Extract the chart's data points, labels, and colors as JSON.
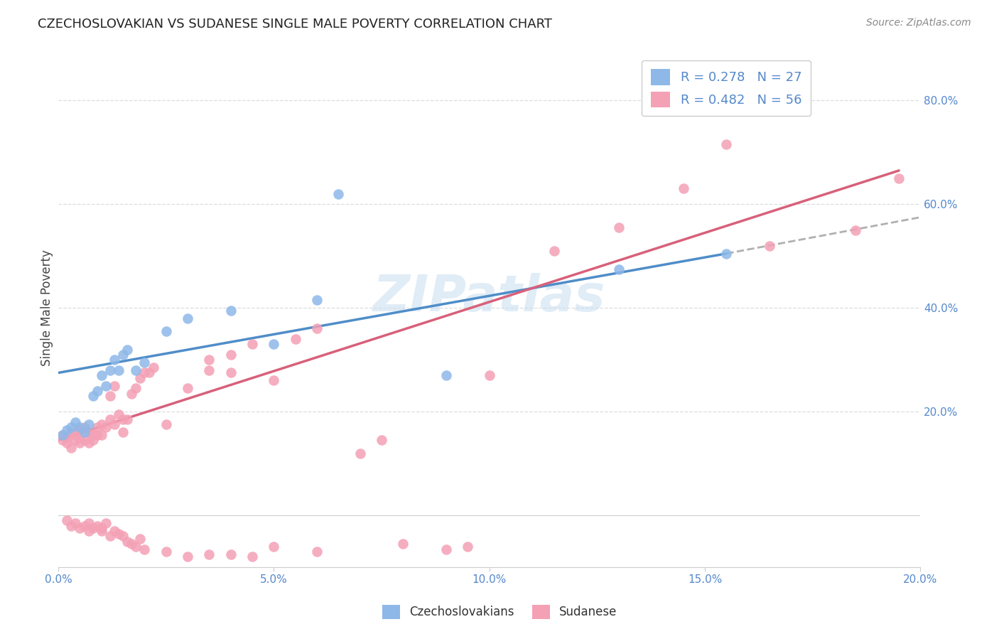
{
  "title": "CZECHOSLOVAKIAN VS SUDANESE SINGLE MALE POVERTY CORRELATION CHART",
  "source": "Source: ZipAtlas.com",
  "ylabel_label": "Single Male Poverty",
  "xlim": [
    0.0,
    0.2
  ],
  "ylim": [
    -0.1,
    0.9
  ],
  "xticks": [
    0.0,
    0.05,
    0.1,
    0.15,
    0.2
  ],
  "ytick_right_vals": [
    0.2,
    0.4,
    0.6,
    0.8
  ],
  "ytick_right_labels": [
    "20.0%",
    "40.0%",
    "60.0%",
    "80.0%"
  ],
  "legend_r1": "R = 0.278",
  "legend_n1": "N = 27",
  "legend_r2": "R = 0.482",
  "legend_n2": "N = 56",
  "color_czech": "#8db8e8",
  "color_sudan": "#f4a0b5",
  "color_czech_line": "#4f8dc8",
  "color_sudan_line": "#d8607a",
  "color_czech_ext": "#b0b0b0",
  "watermark": "ZIPatlas",
  "czech_x": [
    0.001,
    0.002,
    0.003,
    0.004,
    0.005,
    0.006,
    0.007,
    0.008,
    0.009,
    0.01,
    0.011,
    0.012,
    0.013,
    0.014,
    0.015,
    0.016,
    0.018,
    0.02,
    0.025,
    0.03,
    0.04,
    0.05,
    0.06,
    0.065,
    0.09,
    0.13,
    0.155
  ],
  "czech_y": [
    0.155,
    0.165,
    0.17,
    0.18,
    0.17,
    0.16,
    0.175,
    0.23,
    0.24,
    0.27,
    0.25,
    0.28,
    0.3,
    0.28,
    0.31,
    0.32,
    0.28,
    0.295,
    0.355,
    0.38,
    0.395,
    0.33,
    0.415,
    0.62,
    0.27,
    0.475,
    0.505
  ],
  "sudan_x": [
    0.001,
    0.001,
    0.002,
    0.002,
    0.003,
    0.003,
    0.004,
    0.004,
    0.005,
    0.005,
    0.005,
    0.006,
    0.006,
    0.007,
    0.007,
    0.008,
    0.008,
    0.009,
    0.009,
    0.01,
    0.01,
    0.011,
    0.012,
    0.012,
    0.013,
    0.013,
    0.014,
    0.015,
    0.015,
    0.016,
    0.017,
    0.018,
    0.019,
    0.02,
    0.021,
    0.022,
    0.025,
    0.03,
    0.035,
    0.035,
    0.04,
    0.04,
    0.045,
    0.05,
    0.055,
    0.06,
    0.07,
    0.075,
    0.1,
    0.115,
    0.13,
    0.145,
    0.155,
    0.165,
    0.185,
    0.195
  ],
  "sudan_y": [
    0.155,
    0.145,
    0.15,
    0.14,
    0.16,
    0.13,
    0.155,
    0.145,
    0.165,
    0.15,
    0.14,
    0.17,
    0.145,
    0.16,
    0.14,
    0.155,
    0.145,
    0.17,
    0.155,
    0.175,
    0.155,
    0.17,
    0.23,
    0.185,
    0.25,
    0.175,
    0.195,
    0.185,
    0.16,
    0.185,
    0.235,
    0.245,
    0.265,
    0.275,
    0.275,
    0.285,
    0.175,
    0.245,
    0.3,
    0.28,
    0.275,
    0.31,
    0.33,
    0.26,
    0.34,
    0.36,
    0.12,
    0.145,
    0.27,
    0.51,
    0.555,
    0.63,
    0.715,
    0.52,
    0.55,
    0.65
  ],
  "sudan_below_x": [
    0.002,
    0.003,
    0.004,
    0.005,
    0.006,
    0.007,
    0.007,
    0.008,
    0.009,
    0.01,
    0.01,
    0.011,
    0.012,
    0.013,
    0.014,
    0.015,
    0.016,
    0.017,
    0.018,
    0.019,
    0.02,
    0.025,
    0.03,
    0.035,
    0.04,
    0.045,
    0.05,
    0.06,
    0.08,
    0.09,
    0.095
  ],
  "sudan_below_y": [
    -0.01,
    -0.02,
    -0.015,
    -0.025,
    -0.02,
    -0.03,
    -0.015,
    -0.025,
    -0.02,
    -0.03,
    -0.025,
    -0.015,
    -0.04,
    -0.03,
    -0.035,
    -0.04,
    -0.05,
    -0.055,
    -0.06,
    -0.045,
    -0.065,
    -0.07,
    -0.08,
    -0.075,
    -0.075,
    -0.08,
    -0.06,
    -0.07,
    -0.055,
    -0.065,
    -0.06
  ],
  "background_color": "#ffffff",
  "grid_color": "#dddddd"
}
